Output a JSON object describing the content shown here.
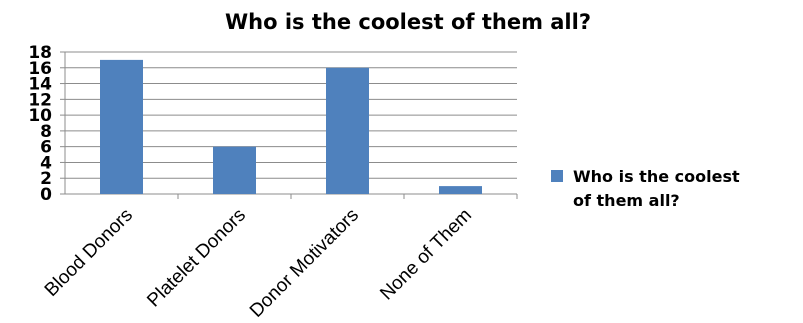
{
  "chart_data": {
    "type": "bar",
    "title": "Who is the coolest of them all?",
    "xlabel": "",
    "ylabel": "",
    "categories": [
      "Blood Donors",
      "Platelet Donors",
      "Donor Motivators",
      "None of Them"
    ],
    "series": [
      {
        "name": "Who is the coolest of them all?",
        "values": [
          17,
          6,
          16,
          1
        ],
        "color": "#4F81BD"
      }
    ],
    "ylim": [
      0,
      18
    ],
    "yticks": [
      "0",
      "2",
      "4",
      "6",
      "8",
      "10",
      "12",
      "14",
      "16",
      "18"
    ],
    "grid": true,
    "legend": {
      "position": "right",
      "line1": "Who is the coolest",
      "line2": "of them all?"
    }
  }
}
